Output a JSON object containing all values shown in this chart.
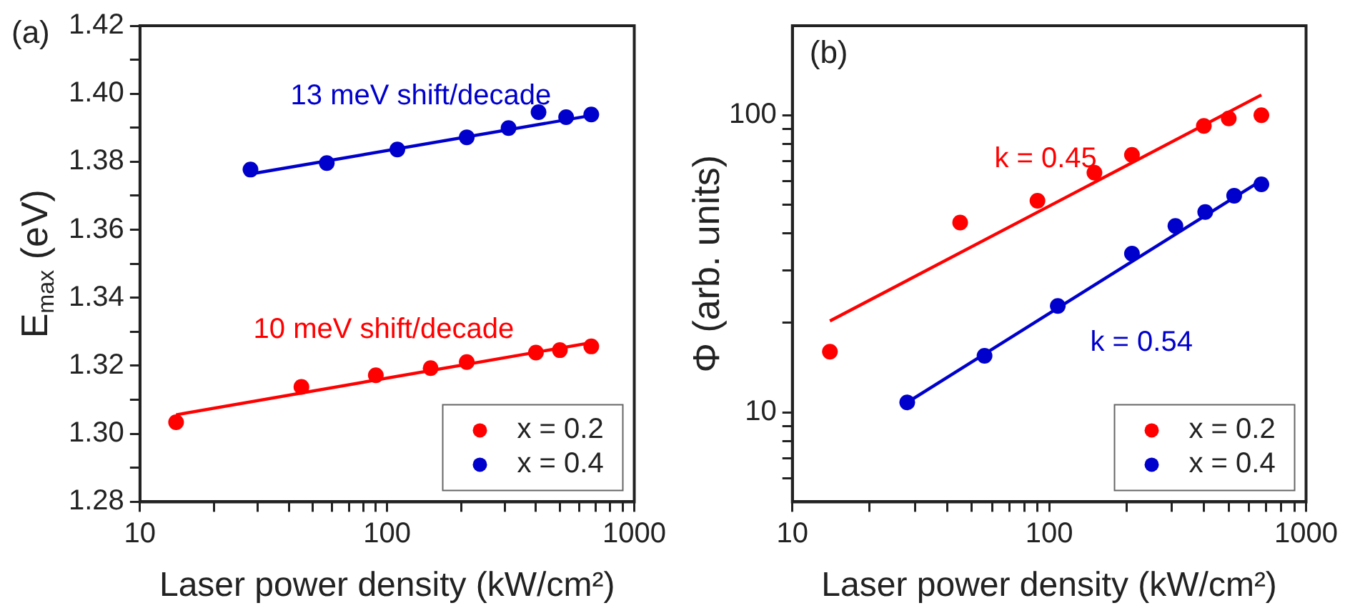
{
  "chart_data": [
    {
      "type": "scatter",
      "title": "(a)",
      "xlabel": "Laser power density (kW/cm²)",
      "ylabel": "E$_{max}$ (eV)",
      "log": "x",
      "xlim": [
        10,
        1000
      ],
      "xticks": [
        10,
        {
          "value": 20,
          "label": null
        },
        {
          "value": 30,
          "label": null
        },
        {
          "value": 40,
          "label": null
        },
        {
          "value": 50,
          "label": null
        },
        {
          "value": 60,
          "label": null
        },
        {
          "value": 70,
          "label": null
        },
        {
          "value": 80,
          "label": null
        },
        {
          "value": 90,
          "label": null
        },
        100,
        {
          "value": 200,
          "label": null
        },
        {
          "value": 300,
          "label": null
        },
        {
          "value": 400,
          "label": null
        },
        {
          "value": 500,
          "label": null
        },
        {
          "value": 600,
          "label": null
        },
        {
          "value": 700,
          "label": null
        },
        {
          "value": 800,
          "label": null
        },
        {
          "value": 900,
          "label": null
        },
        1000
      ],
      "ylim": [
        1.28,
        1.42
      ],
      "yticks": [
        {
          "value": 1.28,
          "label": "1.28"
        },
        {
          "value": 1.29,
          "label": null
        },
        {
          "value": 1.3,
          "label": "1.30"
        },
        {
          "value": 1.31,
          "label": null
        },
        1.32,
        {
          "value": 1.33,
          "label": null
        },
        1.34,
        {
          "value": 1.35,
          "label": null
        },
        1.36,
        {
          "value": 1.37,
          "label": null
        },
        1.38,
        {
          "value": 1.39,
          "label": null
        },
        {
          "value": 1.4,
          "label": "1.40"
        },
        {
          "value": 1.41,
          "label": null
        },
        1.42
      ],
      "legend": "bottom right",
      "marker": "circle",
      "series": [
        {
          "name": "x = 0.2",
          "color": "#ff0000",
          "x": [
            14,
            45,
            90,
            150,
            210,
            400,
            500,
            670
          ],
          "values": [
            1.3034,
            1.3138,
            1.3172,
            1.3193,
            1.3211,
            1.3239,
            1.3246,
            1.3257
          ]
        },
        {
          "name": "x = 0.4",
          "color": "#0000cc",
          "x": [
            28,
            57,
            110,
            210,
            310,
            410,
            530,
            670
          ],
          "values": [
            1.3777,
            1.3796,
            1.3836,
            1.3872,
            1.3899,
            1.3946,
            1.3931,
            1.3939
          ]
        },
        {
          "type": "line",
          "marker": "none",
          "name": "10 meV shift/decade",
          "color": "#ff0000",
          "x": [
            14,
            670
          ],
          "values": [
            1.3056,
            1.3268
          ]
        },
        {
          "type": "line",
          "marker": "none",
          "name": "13 meV shift/decade",
          "color": "#0000cc",
          "x": [
            28,
            670
          ],
          "values": [
            1.3764,
            1.3936
          ]
        }
      ]
    },
    {
      "type": "scatter",
      "title": "(b)",
      "xlabel": "Laser power density (kW/cm²)",
      "ylabel": "Φ (arb. units)",
      "log": "xy",
      "xlim": [
        10,
        1000
      ],
      "xticks": [
        10,
        {
          "value": 20,
          "label": null
        },
        {
          "value": 30,
          "label": null
        },
        {
          "value": 40,
          "label": null
        },
        {
          "value": 50,
          "label": null
        },
        {
          "value": 60,
          "label": null
        },
        {
          "value": 70,
          "label": null
        },
        {
          "value": 80,
          "label": null
        },
        {
          "value": 90,
          "label": null
        },
        100,
        {
          "value": 200,
          "label": null
        },
        {
          "value": 300,
          "label": null
        },
        {
          "value": 400,
          "label": null
        },
        {
          "value": 500,
          "label": null
        },
        {
          "value": 600,
          "label": null
        },
        {
          "value": 700,
          "label": null
        },
        {
          "value": 800,
          "label": null
        },
        {
          "value": 900,
          "label": null
        },
        1000
      ],
      "ylim": [
        5,
        200
      ],
      "yticks": [
        {
          "value": 6,
          "label": null
        },
        {
          "value": 7,
          "label": null
        },
        {
          "value": 8,
          "label": null
        },
        {
          "value": 9,
          "label": null
        },
        10,
        {
          "value": 20,
          "label": null
        },
        {
          "value": 30,
          "label": null
        },
        {
          "value": 40,
          "label": null
        },
        {
          "value": 50,
          "label": null
        },
        {
          "value": 60,
          "label": null
        },
        {
          "value": 70,
          "label": null
        },
        {
          "value": 80,
          "label": null
        },
        {
          "value": 90,
          "label": null
        },
        100
      ],
      "legend": "bottom right",
      "marker": "circle",
      "series": [
        {
          "name": "x = 0.2",
          "color": "#ff0000",
          "x": [
            14,
            45,
            90,
            150,
            210,
            400,
            500,
            670
          ],
          "values": [
            16,
            43.5,
            51.5,
            64,
            73.5,
            92,
            97.5,
            100
          ]
        },
        {
          "name": "x = 0.4",
          "color": "#0000cc",
          "x": [
            28,
            56,
            108,
            210,
            310,
            405,
            525,
            670
          ],
          "values": [
            10.8,
            15.5,
            22.8,
            34.2,
            42.4,
            47.2,
            53.6,
            58.5
          ]
        },
        {
          "type": "line",
          "marker": "none",
          "name": "k = 0.45",
          "color": "#ff0000",
          "x": [
            14,
            670
          ],
          "values": [
            20.3,
            117
          ]
        },
        {
          "type": "line",
          "marker": "none",
          "name": "k = 0.54",
          "color": "#0000cc",
          "x": [
            28,
            670
          ],
          "values": [
            10.8,
            60.3
          ]
        }
      ]
    }
  ]
}
